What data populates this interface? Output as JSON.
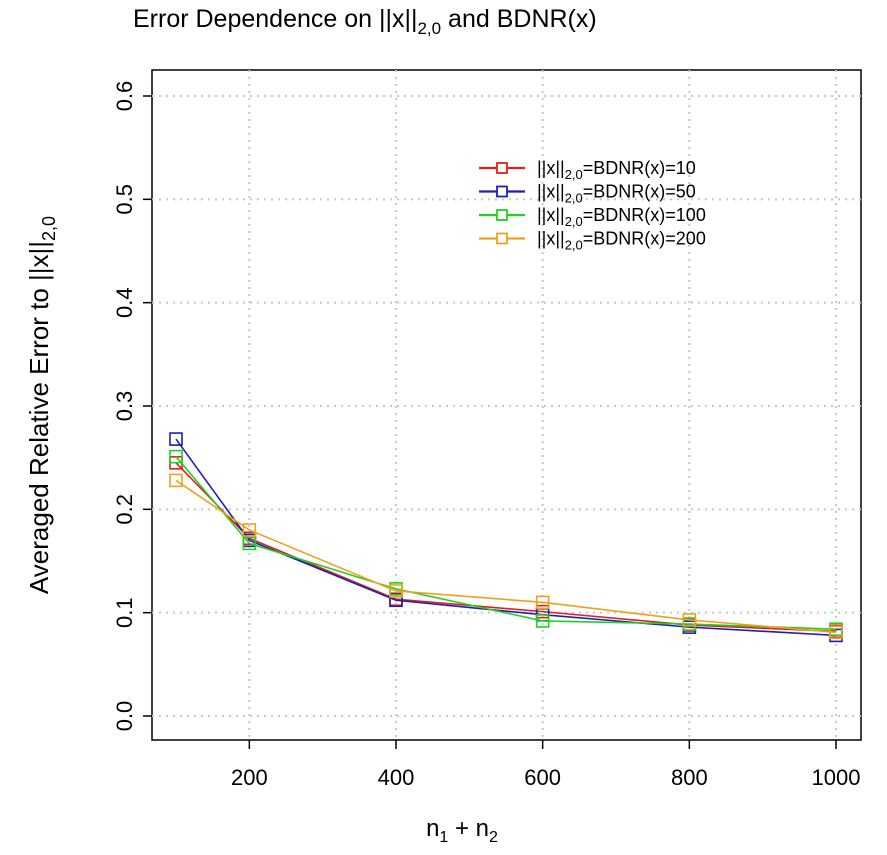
{
  "chart_data": {
    "type": "line",
    "title_parts": [
      "Error Dependence on  ||x||",
      "2,0",
      " and BDNR(x)"
    ],
    "xlabel_parts": [
      "n",
      "1",
      " + n",
      "2"
    ],
    "ylabel_parts": [
      "Averaged Relative Error to  ||x||",
      "2,0"
    ],
    "x": [
      100,
      200,
      400,
      600,
      800,
      1000
    ],
    "xticks": [
      200,
      400,
      600,
      800,
      1000
    ],
    "yticks": [
      0.0,
      0.1,
      0.2,
      0.3,
      0.4,
      0.5,
      0.6
    ],
    "ytick_labels": [
      "0.0",
      "0.1",
      "0.2",
      "0.3",
      "0.4",
      "0.5",
      "0.6"
    ],
    "xlim": [
      100,
      1000
    ],
    "ylim": [
      0.0,
      0.6
    ],
    "grid": true,
    "legend_position": "top-right",
    "marker": "open-square",
    "series": [
      {
        "name_parts": [
          "||x||",
          "2,0",
          "=BDNR(x)=10"
        ],
        "color": "#e0201b",
        "values": [
          0.245,
          0.172,
          0.113,
          0.101,
          0.088,
          0.082
        ]
      },
      {
        "name_parts": [
          "||x||",
          "2,0",
          "=BDNR(x)=50"
        ],
        "color": "#1f1fb4",
        "values": [
          0.268,
          0.17,
          0.112,
          0.098,
          0.086,
          0.078
        ]
      },
      {
        "name_parts": [
          "||x||",
          "2,0",
          "=BDNR(x)=100"
        ],
        "color": "#1fd21f",
        "values": [
          0.251,
          0.167,
          0.123,
          0.092,
          0.089,
          0.084
        ]
      },
      {
        "name_parts": [
          "||x||",
          "2,0",
          "=BDNR(x)=200"
        ],
        "color": "#f0a01e",
        "values": [
          0.228,
          0.18,
          0.121,
          0.11,
          0.093,
          0.081
        ]
      }
    ]
  }
}
